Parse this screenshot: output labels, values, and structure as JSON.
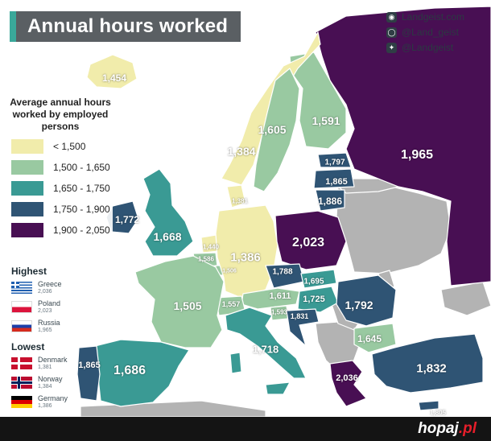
{
  "title": "Annual hours worked",
  "social": [
    {
      "icon": "globe-icon",
      "text": "Landgeist.com"
    },
    {
      "icon": "instagram-icon",
      "text": "@Land_geist"
    },
    {
      "icon": "twitter-icon",
      "text": "@Landgeist"
    }
  ],
  "legend": {
    "title": "Average annual hours worked by employed persons",
    "items": [
      {
        "label": "< 1,500",
        "color": "#f1ecab"
      },
      {
        "label": "1,500 - 1,650",
        "color": "#99c9a1"
      },
      {
        "label": "1,650 - 1,750",
        "color": "#3a9a94"
      },
      {
        "label": "1,750 - 1,900",
        "color": "#2f5474"
      },
      {
        "label": "1,900 - 2,050",
        "color": "#480f53"
      }
    ]
  },
  "highest": {
    "heading": "Highest",
    "items": [
      {
        "name": "Greece",
        "value": "2,036",
        "flag": "greece-flag"
      },
      {
        "name": "Poland",
        "value": "2,023",
        "flag": "poland-flag"
      },
      {
        "name": "Russia",
        "value": "1,965",
        "flag": "russia-flag"
      }
    ]
  },
  "lowest": {
    "heading": "Lowest",
    "items": [
      {
        "name": "Denmark",
        "value": "1,381",
        "flag": "denmark-flag"
      },
      {
        "name": "Norway",
        "value": "1,384",
        "flag": "norway-flag"
      },
      {
        "name": "Germany",
        "value": "1,386",
        "flag": "germany-flag"
      }
    ]
  },
  "countries": [
    {
      "name": "Iceland",
      "value": "1,454",
      "class": "lt1500"
    },
    {
      "name": "Norway",
      "value": "1,384",
      "class": "lt1500"
    },
    {
      "name": "Sweden",
      "value": "1,605",
      "class": "c1500"
    },
    {
      "name": "Finland",
      "value": "1,591",
      "class": "c1500"
    },
    {
      "name": "Russia",
      "value": "1,965",
      "class": "c1900"
    },
    {
      "name": "Estonia",
      "value": "1,797",
      "class": "c1750"
    },
    {
      "name": "Latvia",
      "value": "1,865",
      "class": "c1750"
    },
    {
      "name": "Lithuania",
      "value": "1,886",
      "class": "c1750"
    },
    {
      "name": "Denmark",
      "value": "1,381",
      "class": "lt1500"
    },
    {
      "name": "Ireland",
      "value": "1,772",
      "class": "c1750"
    },
    {
      "name": "United Kingdom",
      "value": "1,668",
      "class": "c1650"
    },
    {
      "name": "Poland",
      "value": "2,023",
      "class": "c1900"
    },
    {
      "name": "Netherlands",
      "value": "1,440",
      "class": "lt1500"
    },
    {
      "name": "Belgium",
      "value": "1,586",
      "class": "c1500"
    },
    {
      "name": "Luxembourg",
      "value": "1,506",
      "class": "c1500"
    },
    {
      "name": "Germany",
      "value": "1,386",
      "class": "lt1500"
    },
    {
      "name": "Czechia",
      "value": "1,788",
      "class": "c1750"
    },
    {
      "name": "Slovakia",
      "value": "1,695",
      "class": "c1650"
    },
    {
      "name": "France",
      "value": "1,505",
      "class": "c1500"
    },
    {
      "name": "Switzerland",
      "value": "1,557",
      "class": "c1500"
    },
    {
      "name": "Austria",
      "value": "1,611",
      "class": "c1500"
    },
    {
      "name": "Hungary",
      "value": "1,725",
      "class": "c1650"
    },
    {
      "name": "Slovenia",
      "value": "1,593",
      "class": "c1500"
    },
    {
      "name": "Croatia",
      "value": "1,831",
      "class": "c1750"
    },
    {
      "name": "Romania",
      "value": "1,792",
      "class": "c1750"
    },
    {
      "name": "Italy",
      "value": "1,718",
      "class": "c1650"
    },
    {
      "name": "Bulgaria",
      "value": "1,645",
      "class": "c1500"
    },
    {
      "name": "Portugal",
      "value": "1,865",
      "class": "c1750"
    },
    {
      "name": "Spain",
      "value": "1,686",
      "class": "c1650"
    },
    {
      "name": "Greece",
      "value": "2,036",
      "class": "c1900"
    },
    {
      "name": "Turkey",
      "value": "1,832",
      "class": "c1750"
    },
    {
      "name": "Cyprus",
      "value": "1,805",
      "class": "c1750"
    }
  ],
  "colors": {
    "lt1500": "#f1ecab",
    "c1500": "#99c9a1",
    "c1650": "#3a9a94",
    "c1750": "#2f5474",
    "c1900": "#480f53",
    "nodata": "#b3b3b3",
    "border": "#ffffff"
  },
  "footer": {
    "brand": "hopaj",
    "suffix": ".pl"
  }
}
